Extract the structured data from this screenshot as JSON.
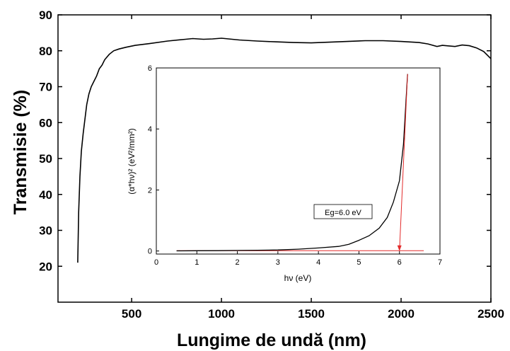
{
  "chart_data": [
    {
      "type": "line",
      "title": "",
      "xlabel": "Lungime de undă (nm)",
      "ylabel": "Transmisie (%)",
      "xlim": [
        90,
        2500
      ],
      "ylim": [
        10,
        90
      ],
      "xticks": [
        500,
        1000,
        1500,
        2000,
        2500
      ],
      "yticks": [
        20,
        30,
        40,
        50,
        60,
        70,
        80,
        90
      ],
      "color": "#000000",
      "series": [
        {
          "x": [
            200,
            205,
            212,
            220,
            230,
            240,
            250,
            262,
            275,
            290,
            305,
            320,
            335,
            350,
            375,
            400,
            430,
            470,
            520,
            600,
            700,
            800,
            840,
            900,
            950,
            1000,
            1100,
            1200,
            1300,
            1400,
            1500,
            1600,
            1700,
            1800,
            1900,
            2000,
            2100,
            2150,
            2200,
            2230,
            2300,
            2340,
            2380,
            2420,
            2460,
            2500
          ],
          "y": [
            21,
            35,
            45,
            52,
            57,
            61,
            65,
            68,
            70,
            71.5,
            73,
            75,
            76,
            77.5,
            79,
            80,
            80.5,
            81,
            81.5,
            82,
            82.7,
            83.2,
            83.4,
            83.2,
            83.3,
            83.5,
            83,
            82.7,
            82.5,
            82.3,
            82.2,
            82.4,
            82.6,
            82.8,
            82.8,
            82.6,
            82.3,
            81.9,
            81.2,
            81.5,
            81.2,
            81.6,
            81.4,
            80.8,
            79.8,
            77.8
          ]
        }
      ]
    },
    {
      "type": "line",
      "title": "",
      "xlabel": "hν (eV)",
      "ylabel": "(α*hν)² (eV²/mm²)",
      "xlim": [
        0,
        7
      ],
      "ylim": [
        -0.1,
        6
      ],
      "xticks": [
        0,
        1,
        2,
        3,
        4,
        5,
        6,
        7
      ],
      "yticks": [
        0,
        2,
        4,
        6
      ],
      "annotation": "Eg=6.0 eV",
      "bandgap_eV": 6.0,
      "color": "#000000",
      "fit_color": "#e32b2b",
      "series": [
        {
          "x": [
            0.5,
            1,
            1.5,
            2,
            2.5,
            3,
            3.5,
            4,
            4.5,
            4.75,
            5,
            5.25,
            5.5,
            5.7,
            5.85,
            6.0,
            6.1,
            6.2
          ],
          "y": [
            0.005,
            0.008,
            0.012,
            0.018,
            0.025,
            0.035,
            0.06,
            0.1,
            0.15,
            0.22,
            0.35,
            0.5,
            0.75,
            1.1,
            1.6,
            2.3,
            3.5,
            5.8
          ]
        }
      ],
      "fit_line": {
        "x": [
          6.0,
          6.2
        ],
        "y": [
          0,
          5.8
        ]
      },
      "baseline": {
        "x": [
          0.5,
          6.6
        ],
        "y": [
          0.01,
          0.01
        ]
      }
    }
  ]
}
